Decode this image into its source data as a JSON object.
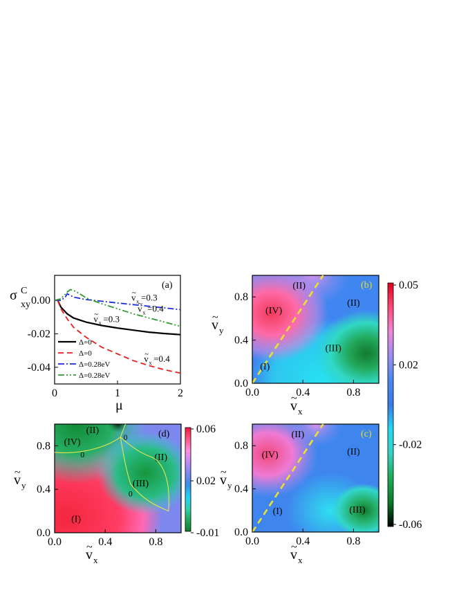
{
  "chart_data": [
    {
      "id": "a",
      "type": "line",
      "panel_label": "(a)",
      "xlabel": "μ",
      "ylabel": "σ",
      "ylabel_sup": "C",
      "ylabel_sub": "xy",
      "xlim": [
        0,
        2
      ],
      "ylim": [
        -0.05,
        0.015
      ],
      "xticks": [
        0,
        1,
        2
      ],
      "yticks": [
        0.0,
        -0.02,
        -0.04
      ],
      "ytick_labels": [
        "0.00",
        "-0.02",
        "-0.04"
      ],
      "legend_position": "lower-left",
      "series": [
        {
          "legend": "Δ=0",
          "color": "#000000",
          "dash": "",
          "x": [
            0.05,
            0.1,
            0.2,
            0.3,
            0.5,
            0.75,
            1.0,
            1.25,
            1.5,
            1.75,
            2.0
          ],
          "y": [
            0.0,
            -0.004,
            -0.008,
            -0.0105,
            -0.013,
            -0.015,
            -0.0165,
            -0.0178,
            -0.019,
            -0.0198,
            -0.0205
          ]
        },
        {
          "legend": "Δ=0",
          "color": "#e8201a",
          "dash": "8,5",
          "x": [
            0.05,
            0.1,
            0.2,
            0.3,
            0.5,
            0.75,
            1.0,
            1.25,
            1.5,
            1.75,
            2.0
          ],
          "y": [
            0.0,
            -0.005,
            -0.011,
            -0.016,
            -0.022,
            -0.028,
            -0.032,
            -0.036,
            -0.039,
            -0.0415,
            -0.0435
          ]
        },
        {
          "legend": "Δ=0.28eV",
          "color": "#1c2bd6",
          "dash": "9,3,2,3",
          "x": [
            0.0,
            0.1,
            0.17,
            0.2,
            0.25,
            0.3,
            0.5,
            0.75,
            1.0,
            1.25,
            1.5,
            1.75,
            2.0
          ],
          "y": [
            0.0,
            0.0,
            0.002,
            0.004,
            0.003,
            0.002,
            0.0005,
            -0.0005,
            -0.0015,
            -0.0025,
            -0.0035,
            -0.0045,
            -0.0055
          ]
        },
        {
          "legend": "Δ=0.28eV",
          "color": "#2e9a2e",
          "dash": "9,3,2,3,2,3",
          "x": [
            0.0,
            0.1,
            0.2,
            0.25,
            0.3,
            0.4,
            0.5,
            0.75,
            1.0,
            1.25,
            1.5,
            1.75,
            2.0
          ],
          "y": [
            0.0,
            0.001,
            0.005,
            0.0065,
            0.006,
            0.004,
            0.0015,
            -0.002,
            -0.005,
            -0.008,
            -0.0105,
            -0.013,
            -0.0155
          ]
        }
      ],
      "annotations": [
        {
          "text": "=0.3",
          "var": "v",
          "sub": "x",
          "x": 0.62,
          "y": -0.013
        },
        {
          "text": "=0.3",
          "var": "v",
          "sub": "x",
          "x": 1.22,
          "y": -0.0001
        },
        {
          "text": "=0.4",
          "var": "v",
          "sub": "x",
          "x": 1.32,
          "y": -0.0068
        },
        {
          "text": "=0.4",
          "var": "v",
          "sub": "x",
          "x": 1.42,
          "y": -0.0368
        }
      ]
    },
    {
      "id": "b",
      "type": "heatmap",
      "panel_label": "(b)",
      "panel_label_color": "#e8e020",
      "xlabel_var": "v",
      "xlabel_sub": "x",
      "ylabel_var": "v",
      "ylabel_sub": "y",
      "xlim": [
        0,
        1
      ],
      "ylim": [
        0,
        1
      ],
      "xticks": [
        0.0,
        0.4,
        0.8
      ],
      "xtick_labels": [
        "0.0",
        "0.4",
        "0.8"
      ],
      "yticks": [
        0.0,
        0.4,
        0.8
      ],
      "ytick_labels": [
        "0.0",
        "0.4",
        "0.8"
      ],
      "dashed_line": {
        "color": "#f0e030",
        "x": [
          0,
          0.56
        ],
        "y": [
          0,
          1
        ]
      },
      "regions": [
        {
          "text": "(II)",
          "x": 0.37,
          "y": 0.91
        },
        {
          "text": "(IV)",
          "x": 0.17,
          "y": 0.68
        },
        {
          "text": "(II)",
          "x": 0.8,
          "y": 0.75
        },
        {
          "text": "(III)",
          "x": 0.64,
          "y": 0.33
        },
        {
          "text": "(I)",
          "x": 0.1,
          "y": 0.16
        }
      ]
    },
    {
      "id": "c",
      "type": "heatmap",
      "panel_label": "(c)",
      "panel_label_color": "#e8e020",
      "xlabel_var": "v",
      "xlabel_sub": "x",
      "ylabel_var": "v",
      "ylabel_sub": "y",
      "xlim": [
        0,
        1
      ],
      "ylim": [
        0,
        1
      ],
      "xticks": [
        0.0,
        0.4,
        0.8
      ],
      "xtick_labels": [
        "0.0",
        "0.4",
        "0.8"
      ],
      "yticks": [
        0.0,
        0.4,
        0.8
      ],
      "ytick_labels": [
        "0.0",
        "0.4",
        "0.8"
      ],
      "dashed_line": {
        "color": "#f0e030",
        "x": [
          0,
          0.56
        ],
        "y": [
          0,
          1
        ]
      },
      "regions": [
        {
          "text": "(II)",
          "x": 0.36,
          "y": 0.91
        },
        {
          "text": "(IV)",
          "x": 0.14,
          "y": 0.72
        },
        {
          "text": "(II)",
          "x": 0.8,
          "y": 0.75
        },
        {
          "text": "(III)",
          "x": 0.83,
          "y": 0.21
        },
        {
          "text": "(I)",
          "x": 0.2,
          "y": 0.2
        }
      ]
    },
    {
      "id": "d",
      "type": "heatmap",
      "panel_label": "(d)",
      "panel_label_color": "#000000",
      "xlabel_var": "v",
      "xlabel_sub": "x",
      "ylabel_var": "v",
      "ylabel_sub": "y",
      "xlim": [
        0,
        1
      ],
      "ylim": [
        0,
        1
      ],
      "xticks": [
        0.0,
        0.4,
        0.8
      ],
      "xtick_labels": [
        "0.0",
        "0.4",
        "0.8"
      ],
      "yticks": [
        0.0,
        0.4,
        0.8
      ],
      "ytick_labels": [
        "0.0",
        "0.4",
        "0.8"
      ],
      "contour_color": "#e6e64a",
      "regions": [
        {
          "text": "(II)",
          "x": 0.3,
          "y": 0.95
        },
        {
          "text": "(IV)",
          "x": 0.14,
          "y": 0.84
        },
        {
          "text": "(II)",
          "x": 0.84,
          "y": 0.7
        },
        {
          "text": "(III)",
          "x": 0.68,
          "y": 0.46
        },
        {
          "text": "(I)",
          "x": 0.17,
          "y": 0.13
        }
      ],
      "zero_labels": [
        {
          "text": "0",
          "x": 0.56,
          "y": 0.88
        },
        {
          "text": "0",
          "x": 0.22,
          "y": 0.72
        },
        {
          "text": "0",
          "x": 0.6,
          "y": 0.36
        }
      ]
    }
  ],
  "colorbars": [
    {
      "for": "b-c",
      "ticks": [
        "0.05",
        "0.02",
        "-0.02",
        "-0.06"
      ],
      "stops": [
        "#e0001e",
        "#ff4a78",
        "#ee86d8",
        "#9a8cf0",
        "#4a86f0",
        "#3a7ae8",
        "#22d8f2",
        "#36d2c4",
        "#1eaa58",
        "#0b7a28",
        "#000000"
      ]
    },
    {
      "for": "d",
      "ticks": [
        "0.06",
        "0.02",
        "-0.01"
      ],
      "stops": [
        "#f0183c",
        "#ff5a86",
        "#ff8ee0",
        "#c08cf4",
        "#7a88f0",
        "#3a8ee8",
        "#24d2f0",
        "#34d2b4",
        "#22aa5a",
        "#0e7a2c"
      ]
    }
  ]
}
